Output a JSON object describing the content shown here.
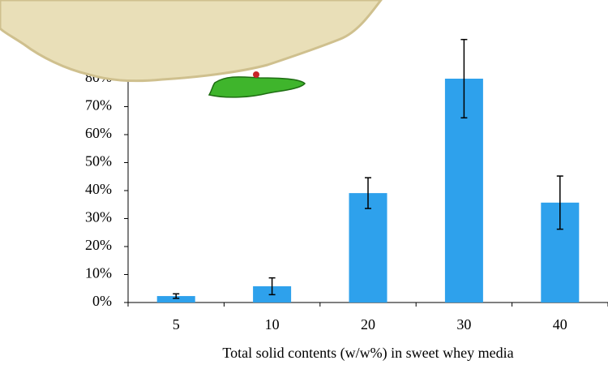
{
  "chart_data": {
    "type": "bar",
    "x_label": "Total solid contents (w/w%) in sweet whey media",
    "categories": [
      "5",
      "10",
      "20",
      "30",
      "40"
    ],
    "values": [
      2.3,
      5.8,
      39.1,
      80,
      35.7
    ],
    "errors": [
      0.8,
      3,
      5.5,
      14,
      9.5
    ],
    "color": "#2ea1ec",
    "ylim": [
      0,
      100
    ],
    "yticks": [
      {
        "value": 0,
        "label": "0%"
      },
      {
        "value": 10,
        "label": "10%"
      },
      {
        "value": 20,
        "label": "20%"
      },
      {
        "value": 30,
        "label": "30%"
      },
      {
        "value": 40,
        "label": "40%"
      },
      {
        "value": 50,
        "label": "50%"
      },
      {
        "value": 60,
        "label": "60%"
      },
      {
        "value": 70,
        "label": "70%"
      },
      {
        "value": 80,
        "label": "80%"
      }
    ]
  }
}
